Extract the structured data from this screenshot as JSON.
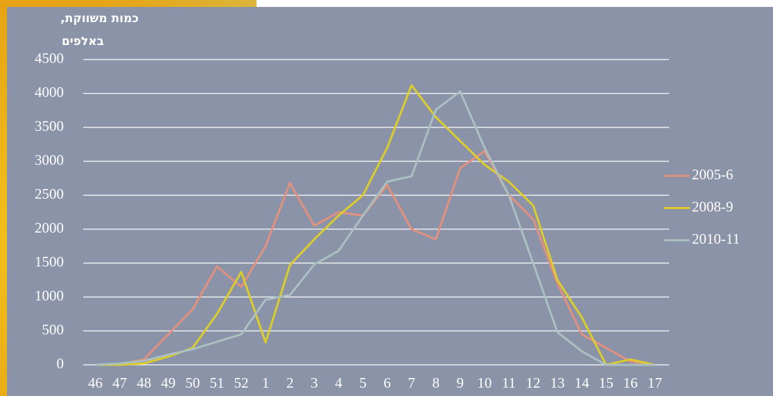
{
  "chart_data": {
    "type": "line",
    "ylabel": [
      "כמות משווקת,",
      "באלפים"
    ],
    "categories": [
      "46",
      "47",
      "48",
      "49",
      "50",
      "51",
      "52",
      "1",
      "2",
      "3",
      "4",
      "5",
      "6",
      "7",
      "8",
      "9",
      "10",
      "11",
      "12",
      "13",
      "14",
      "15",
      "16",
      "17"
    ],
    "series": [
      {
        "name": "2005-6",
        "color": "#e3917f",
        "values": [
          0,
          10,
          80,
          450,
          820,
          1450,
          1150,
          1750,
          2680,
          2050,
          2250,
          2200,
          2650,
          2000,
          1850,
          2900,
          3150,
          2500,
          2150,
          1200,
          450,
          250,
          50,
          0
        ]
      },
      {
        "name": "2008-9",
        "color": "#dccd2c",
        "values": [
          0,
          0,
          20,
          120,
          250,
          750,
          1370,
          330,
          1470,
          1850,
          2200,
          2500,
          3200,
          4120,
          3650,
          3300,
          2950,
          2700,
          2350,
          1250,
          700,
          0,
          80,
          0
        ]
      },
      {
        "name": "2010-11",
        "color": "#abc0c0",
        "values": [
          0,
          20,
          60,
          150,
          230,
          340,
          450,
          960,
          1030,
          1480,
          1680,
          2200,
          2700,
          2780,
          3760,
          4030,
          3200,
          2500,
          1500,
          480,
          200,
          0,
          0,
          0
        ]
      }
    ],
    "ylim": [
      0,
      4500
    ],
    "yticks": [
      0,
      500,
      1000,
      1500,
      2000,
      2500,
      3000,
      3500,
      4000,
      4500
    ],
    "grid": true,
    "legend": "right"
  }
}
